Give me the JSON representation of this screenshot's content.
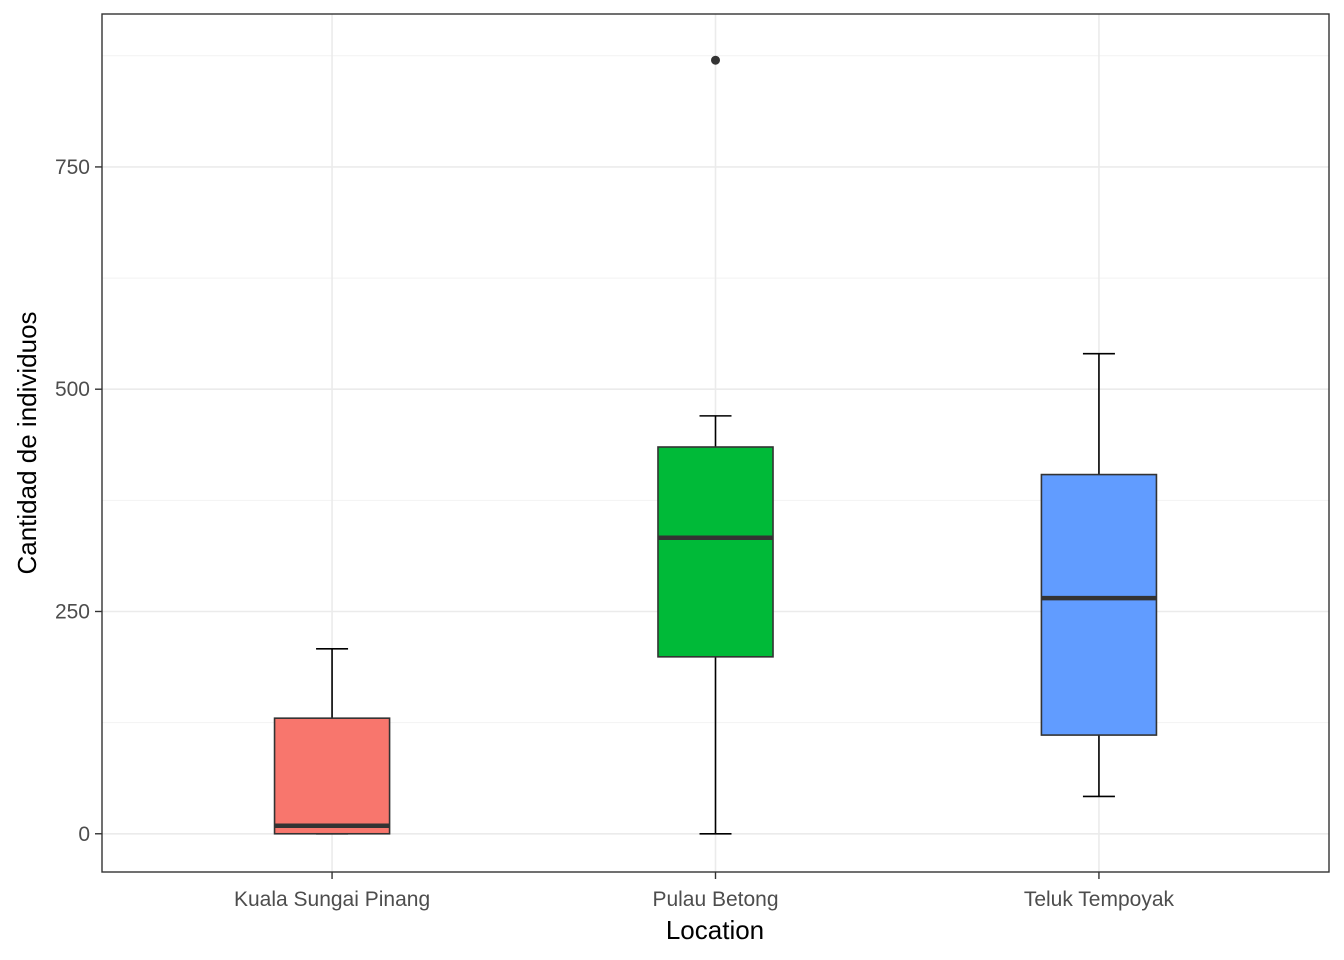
{
  "chart_data": {
    "type": "boxplot",
    "title": "",
    "xlabel": "Location",
    "ylabel": "Cantidad de individuos",
    "ylim": [
      -43,
      922
    ],
    "yticks": [
      0,
      250,
      500,
      750
    ],
    "grid": true,
    "categories": [
      "Kuala Sungai Pinang",
      "Pulau Betong",
      "Teluk Tempoyak"
    ],
    "colors": [
      "#F8766D",
      "#00BA38",
      "#619CFF"
    ],
    "series": [
      {
        "category": "Kuala Sungai Pinang",
        "min": 0,
        "q1": 0,
        "median": 9,
        "q3": 130,
        "max": 208,
        "whisker_low": 0,
        "whisker_high": 208,
        "outliers": []
      },
      {
        "category": "Pulau Betong",
        "min": 0,
        "q1": 199,
        "median": 333,
        "q3": 435,
        "max": 870,
        "whisker_low": 0,
        "whisker_high": 470,
        "outliers": [
          870
        ]
      },
      {
        "category": "Teluk Tempoyak",
        "min": 42,
        "q1": 111,
        "median": 265,
        "q3": 404,
        "max": 540,
        "whisker_low": 42,
        "whisker_high": 540,
        "outliers": []
      }
    ]
  }
}
